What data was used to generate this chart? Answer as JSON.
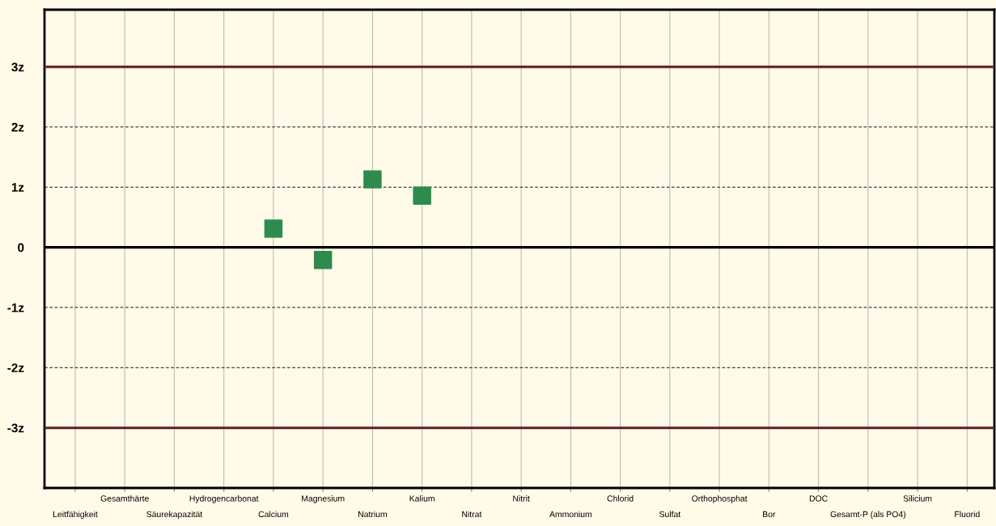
{
  "chart_data": {
    "type": "scatter",
    "categories": [
      "Leitfähigkeit",
      "Gesamthärte",
      "Säurekapazität",
      "Hydrogencarbonat",
      "Calcium",
      "Magnesium",
      "Natrium",
      "Kalium",
      "Nitrat",
      "Nitrit",
      "Ammonium",
      "Chlorid",
      "Sulfat",
      "Orthophosphat",
      "Bor",
      "DOC",
      "Gesamt-P (als PO4)",
      "Silicium",
      "Fluorid"
    ],
    "series": [
      {
        "color": "#2e8b4e",
        "values": [
          null,
          null,
          null,
          null,
          0.31,
          -0.21,
          1.13,
          0.86,
          null,
          null,
          null,
          null,
          null,
          null,
          null,
          null,
          null,
          null,
          null
        ]
      }
    ],
    "marker": "square",
    "ylim": [
      -4,
      3.95
    ],
    "yticks": [
      {
        "value": -3,
        "label": "-3z"
      },
      {
        "value": -2,
        "label": "-2z"
      },
      {
        "value": -1,
        "label": "-1z"
      },
      0,
      {
        "value": 1,
        "label": "1z"
      },
      {
        "value": 2,
        "label": "2z"
      },
      {
        "value": 3,
        "label": "3z"
      }
    ],
    "grid": true,
    "ref_lines": [
      {
        "axis": "y",
        "value": 3,
        "color": "#6e2a30"
      },
      {
        "axis": "y",
        "value": 0,
        "color": "#000000"
      },
      {
        "axis": "y",
        "value": -3,
        "color": "#5a1f25"
      }
    ]
  }
}
